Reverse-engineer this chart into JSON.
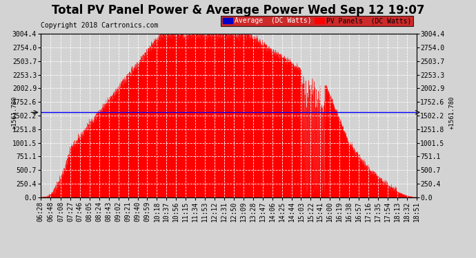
{
  "title": "Total PV Panel Power & Average Power Wed Sep 12 19:07",
  "copyright": "Copyright 2018 Cartronics.com",
  "avg_value": 1561.78,
  "avg_label": "1561.780",
  "y_max": 3004.4,
  "y_min": 0.0,
  "y_ticks": [
    0.0,
    250.4,
    500.7,
    751.1,
    1001.5,
    1251.8,
    1502.2,
    1752.6,
    2002.9,
    2253.3,
    2503.7,
    2754.0,
    3004.4
  ],
  "legend_avg_label": "Average  (DC Watts)",
  "legend_pv_label": "PV Panels  (DC Watts)",
  "avg_color": "#0000ff",
  "pv_color": "#ff0000",
  "bg_color": "#d3d3d3",
  "plot_bg_color": "#d3d3d3",
  "fill_color": "#ff0000",
  "grid_color": "#ffffff",
  "title_fontsize": 12,
  "copyright_fontsize": 7,
  "tick_fontsize": 7,
  "x_labels": [
    "06:28",
    "06:48",
    "07:08",
    "07:27",
    "07:46",
    "08:05",
    "08:24",
    "08:43",
    "09:02",
    "09:21",
    "09:40",
    "09:59",
    "10:18",
    "10:37",
    "10:56",
    "11:15",
    "11:34",
    "11:53",
    "12:12",
    "12:31",
    "12:50",
    "13:09",
    "13:28",
    "13:47",
    "14:06",
    "14:25",
    "14:44",
    "15:03",
    "15:22",
    "15:41",
    "16:00",
    "16:19",
    "16:38",
    "16:57",
    "17:16",
    "17:35",
    "17:54",
    "18:13",
    "18:32",
    "18:51"
  ]
}
